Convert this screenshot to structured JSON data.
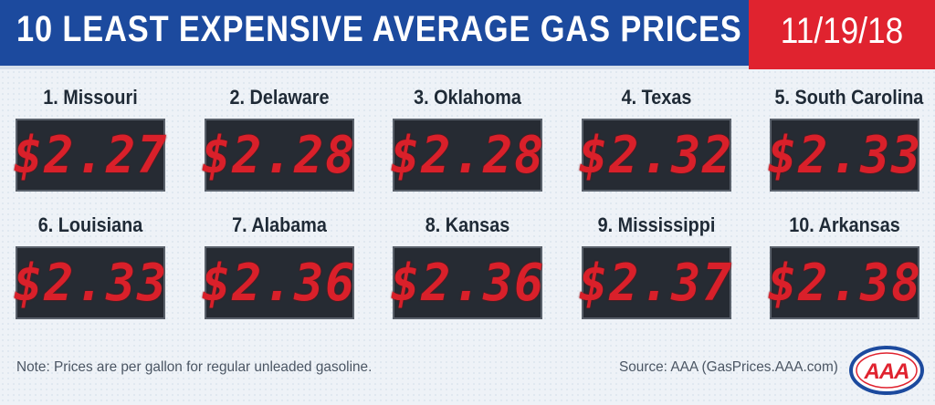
{
  "header": {
    "title": "10 LEAST EXPENSIVE AVERAGE GAS PRICES",
    "date": "11/19/18"
  },
  "colors": {
    "header_blue": "#1c4a9e",
    "date_red": "#e0232f",
    "price_red": "#d9202a",
    "display_bg": "#262b33"
  },
  "states": [
    {
      "rank_label": "1. Missouri",
      "price": "$2.27"
    },
    {
      "rank_label": "2. Delaware",
      "price": "$2.28"
    },
    {
      "rank_label": "3. Oklahoma",
      "price": "$2.28"
    },
    {
      "rank_label": "4. Texas",
      "price": "$2.32"
    },
    {
      "rank_label": "5. South Carolina",
      "price": "$2.33"
    },
    {
      "rank_label": "6. Louisiana",
      "price": "$2.33"
    },
    {
      "rank_label": "7. Alabama",
      "price": "$2.36"
    },
    {
      "rank_label": "8. Kansas",
      "price": "$2.36"
    },
    {
      "rank_label": "9. Mississippi",
      "price": "$2.37"
    },
    {
      "rank_label": "10. Arkansas",
      "price": "$2.38"
    }
  ],
  "footer": {
    "note": "Note: Prices are per gallon for regular unleaded gasoline.",
    "source": "Source: AAA (GasPrices.AAA.com)",
    "logo_text": "AAA",
    "logo_icon": "aaa-logo-icon"
  }
}
